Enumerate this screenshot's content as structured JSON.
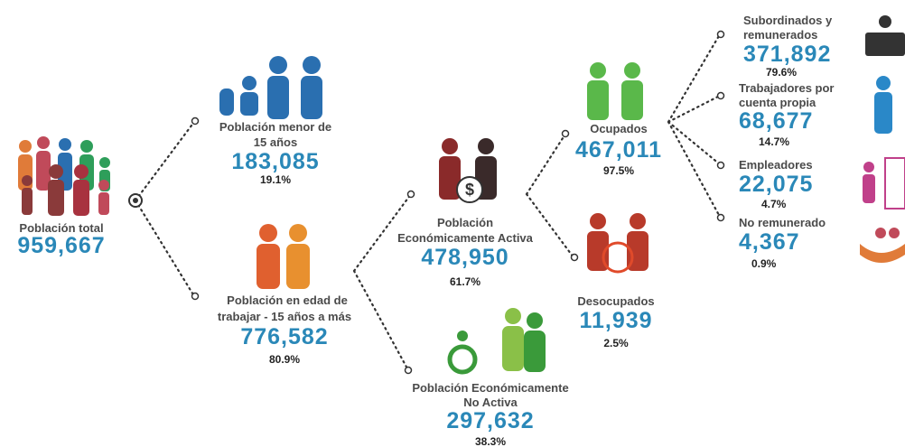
{
  "nodes": [
    {
      "label": [
        "Población total"
      ],
      "value": "959,667"
    },
    {
      "label": [
        "Población menor de",
        "15 años"
      ],
      "value": "183,085",
      "percent": "19.1%"
    },
    {
      "label": [
        "Población en edad de",
        "trabajar  - 15 años a más"
      ],
      "value": "776,582",
      "percent": "80.9%"
    },
    {
      "label": [
        "Población",
        "Económicamente Activa"
      ],
      "value": "478,950",
      "percent": "61.7%"
    },
    {
      "label": [
        "Población Económicamente",
        "No Activa"
      ],
      "value": "297,632",
      "percent": "38.3%"
    },
    {
      "label": [
        "Ocupados"
      ],
      "value": "467,011",
      "percent": "97.5%"
    },
    {
      "label": [
        "Desocupados"
      ],
      "value": "11,939",
      "percent": "2.5%"
    },
    {
      "label": [
        "Subordinados  y",
        "remunerados"
      ],
      "value": "371,892",
      "percent": "79.6%"
    },
    {
      "label": [
        "Trabajadores por",
        "cuenta propia"
      ],
      "value": "68,677",
      "percent": "14.7%"
    },
    {
      "label": [
        "Empleadores"
      ],
      "value": "22,075",
      "percent": "4.7%"
    },
    {
      "label": [
        "No remunerado"
      ],
      "value": "4,367",
      "percent": "0.9%"
    }
  ]
}
